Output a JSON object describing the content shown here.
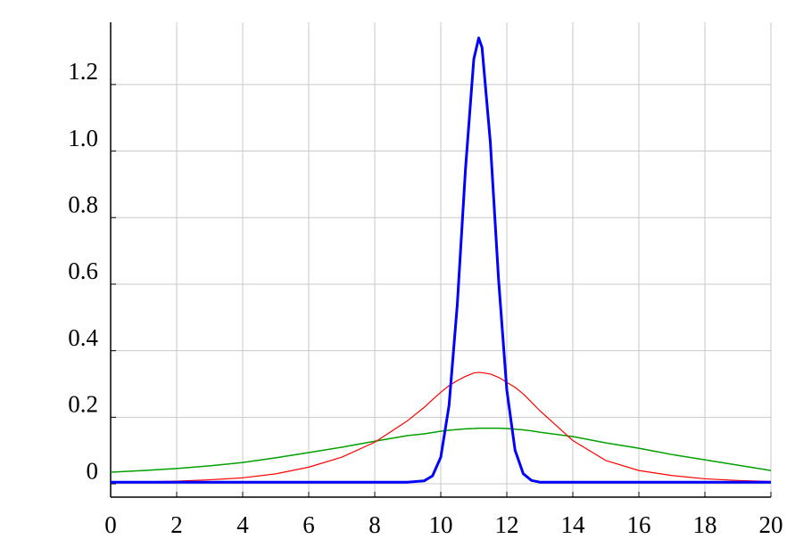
{
  "chart_data": {
    "type": "line",
    "x": [
      0,
      1,
      2,
      3,
      4,
      5,
      6,
      7,
      8,
      9,
      9.5,
      9.75,
      10,
      10.25,
      10.5,
      10.75,
      11,
      11.15,
      11.25,
      11.5,
      11.75,
      12,
      12.25,
      12.5,
      12.75,
      13,
      14,
      15,
      16,
      17,
      18,
      19,
      20
    ],
    "series": [
      {
        "color": "#00a000",
        "width": 1.5,
        "values": [
          0.035,
          0.04,
          0.046,
          0.054,
          0.064,
          0.078,
          0.094,
          0.11,
          0.128,
          0.145,
          0.15,
          0.154,
          0.158,
          0.161,
          0.163,
          0.165,
          0.166,
          0.167,
          0.167,
          0.167,
          0.167,
          0.166,
          0.164,
          0.162,
          0.159,
          0.155,
          0.142,
          0.123,
          0.107,
          0.088,
          0.072,
          0.056,
          0.04
        ]
      },
      {
        "color": "#ff0000",
        "width": 1.2,
        "values": [
          0.005,
          0.006,
          0.008,
          0.012,
          0.018,
          0.03,
          0.05,
          0.08,
          0.125,
          0.19,
          0.23,
          0.253,
          0.275,
          0.295,
          0.31,
          0.323,
          0.333,
          0.335,
          0.334,
          0.33,
          0.32,
          0.305,
          0.29,
          0.27,
          0.245,
          0.22,
          0.13,
          0.07,
          0.04,
          0.025,
          0.015,
          0.01,
          0.007
        ]
      },
      {
        "color": "#0000ff",
        "width": 3,
        "values": [
          0.005,
          0.005,
          0.005,
          0.005,
          0.005,
          0.005,
          0.005,
          0.005,
          0.005,
          0.005,
          0.009,
          0.024,
          0.08,
          0.235,
          0.538,
          0.948,
          1.276,
          1.34,
          1.311,
          1.028,
          0.615,
          0.282,
          0.101,
          0.03,
          0.01,
          0.005,
          0.005,
          0.005,
          0.005,
          0.005,
          0.005,
          0.005,
          0.005
        ]
      }
    ],
    "xlim": [
      0,
      20
    ],
    "xticks": [
      0,
      2,
      4,
      6,
      8,
      10,
      12,
      14,
      16,
      18,
      20
    ],
    "ylim": [
      -0.04,
      1.387
    ],
    "yticks": [
      0,
      0.2,
      0.4,
      0.6,
      0.8,
      {
        "value": 1,
        "label": "1.0"
      },
      1.2
    ],
    "grid": true
  }
}
